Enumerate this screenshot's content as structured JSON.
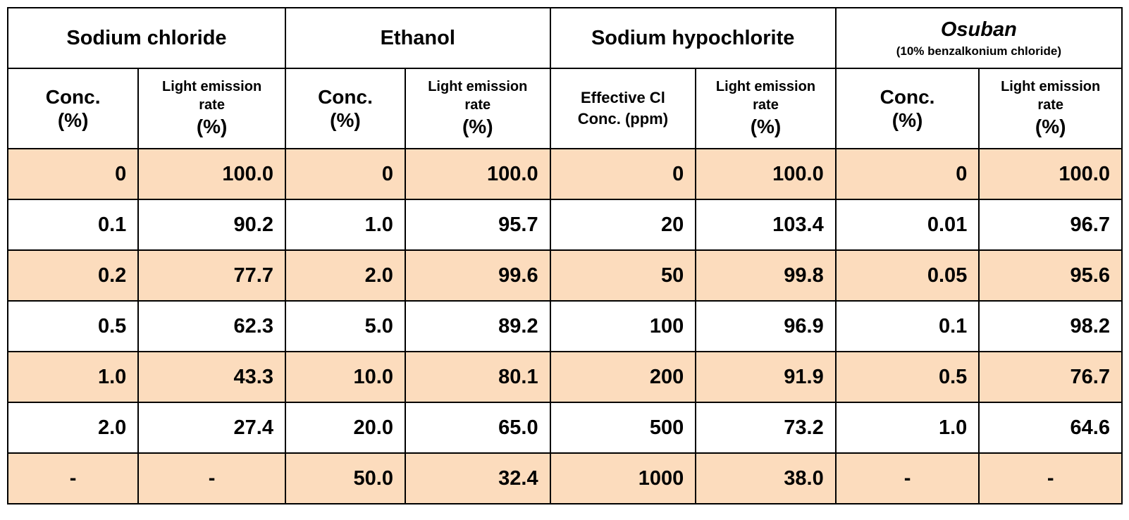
{
  "chart_data": {
    "type": "table",
    "groups": [
      {
        "name": "Sodium chloride",
        "subtitle": "",
        "italic": false
      },
      {
        "name": "Ethanol",
        "subtitle": "",
        "italic": false
      },
      {
        "name": "Sodium hypochlorite",
        "subtitle": "",
        "italic": false
      },
      {
        "name": "Osuban",
        "subtitle": "(10%  benzalkonium chloride)",
        "italic": true
      }
    ],
    "columns": [
      {
        "type": "conc",
        "lines": [
          "Conc.",
          "(%)"
        ]
      },
      {
        "type": "rate",
        "lines": [
          "Light emission",
          "rate",
          "(%)"
        ]
      },
      {
        "type": "conc",
        "lines": [
          "Conc.",
          "(%)"
        ]
      },
      {
        "type": "rate",
        "lines": [
          "Light emission",
          "rate",
          "(%)"
        ]
      },
      {
        "type": "eff",
        "lines": [
          "Effective Cl",
          "Conc. (ppm)"
        ]
      },
      {
        "type": "rate",
        "lines": [
          "Light emission",
          "rate",
          "(%)"
        ]
      },
      {
        "type": "conc",
        "lines": [
          "Conc.",
          "(%)"
        ]
      },
      {
        "type": "rate",
        "lines": [
          "Light emission",
          "rate",
          "(%)"
        ]
      }
    ],
    "rows": [
      [
        "0",
        "100.0",
        "0",
        "100.0",
        "0",
        "100.0",
        "0",
        "100.0"
      ],
      [
        "0.1",
        "90.2",
        "1.0",
        "95.7",
        "20",
        "103.4",
        "0.01",
        "96.7"
      ],
      [
        "0.2",
        "77.7",
        "2.0",
        "99.6",
        "50",
        "99.8",
        "0.05",
        "95.6"
      ],
      [
        "0.5",
        "62.3",
        "5.0",
        "89.2",
        "100",
        "96.9",
        "0.1",
        "98.2"
      ],
      [
        "1.0",
        "43.3",
        "10.0",
        "80.1",
        "200",
        "91.9",
        "0.5",
        "76.7"
      ],
      [
        "2.0",
        "27.4",
        "20.0",
        "65.0",
        "500",
        "73.2",
        "1.0",
        "64.6"
      ],
      [
        "-",
        "-",
        "50.0",
        "32.4",
        "1000",
        "38.0",
        "-",
        "-"
      ]
    ],
    "row_shading": [
      "#fcdcbd",
      "#ffffff"
    ]
  }
}
